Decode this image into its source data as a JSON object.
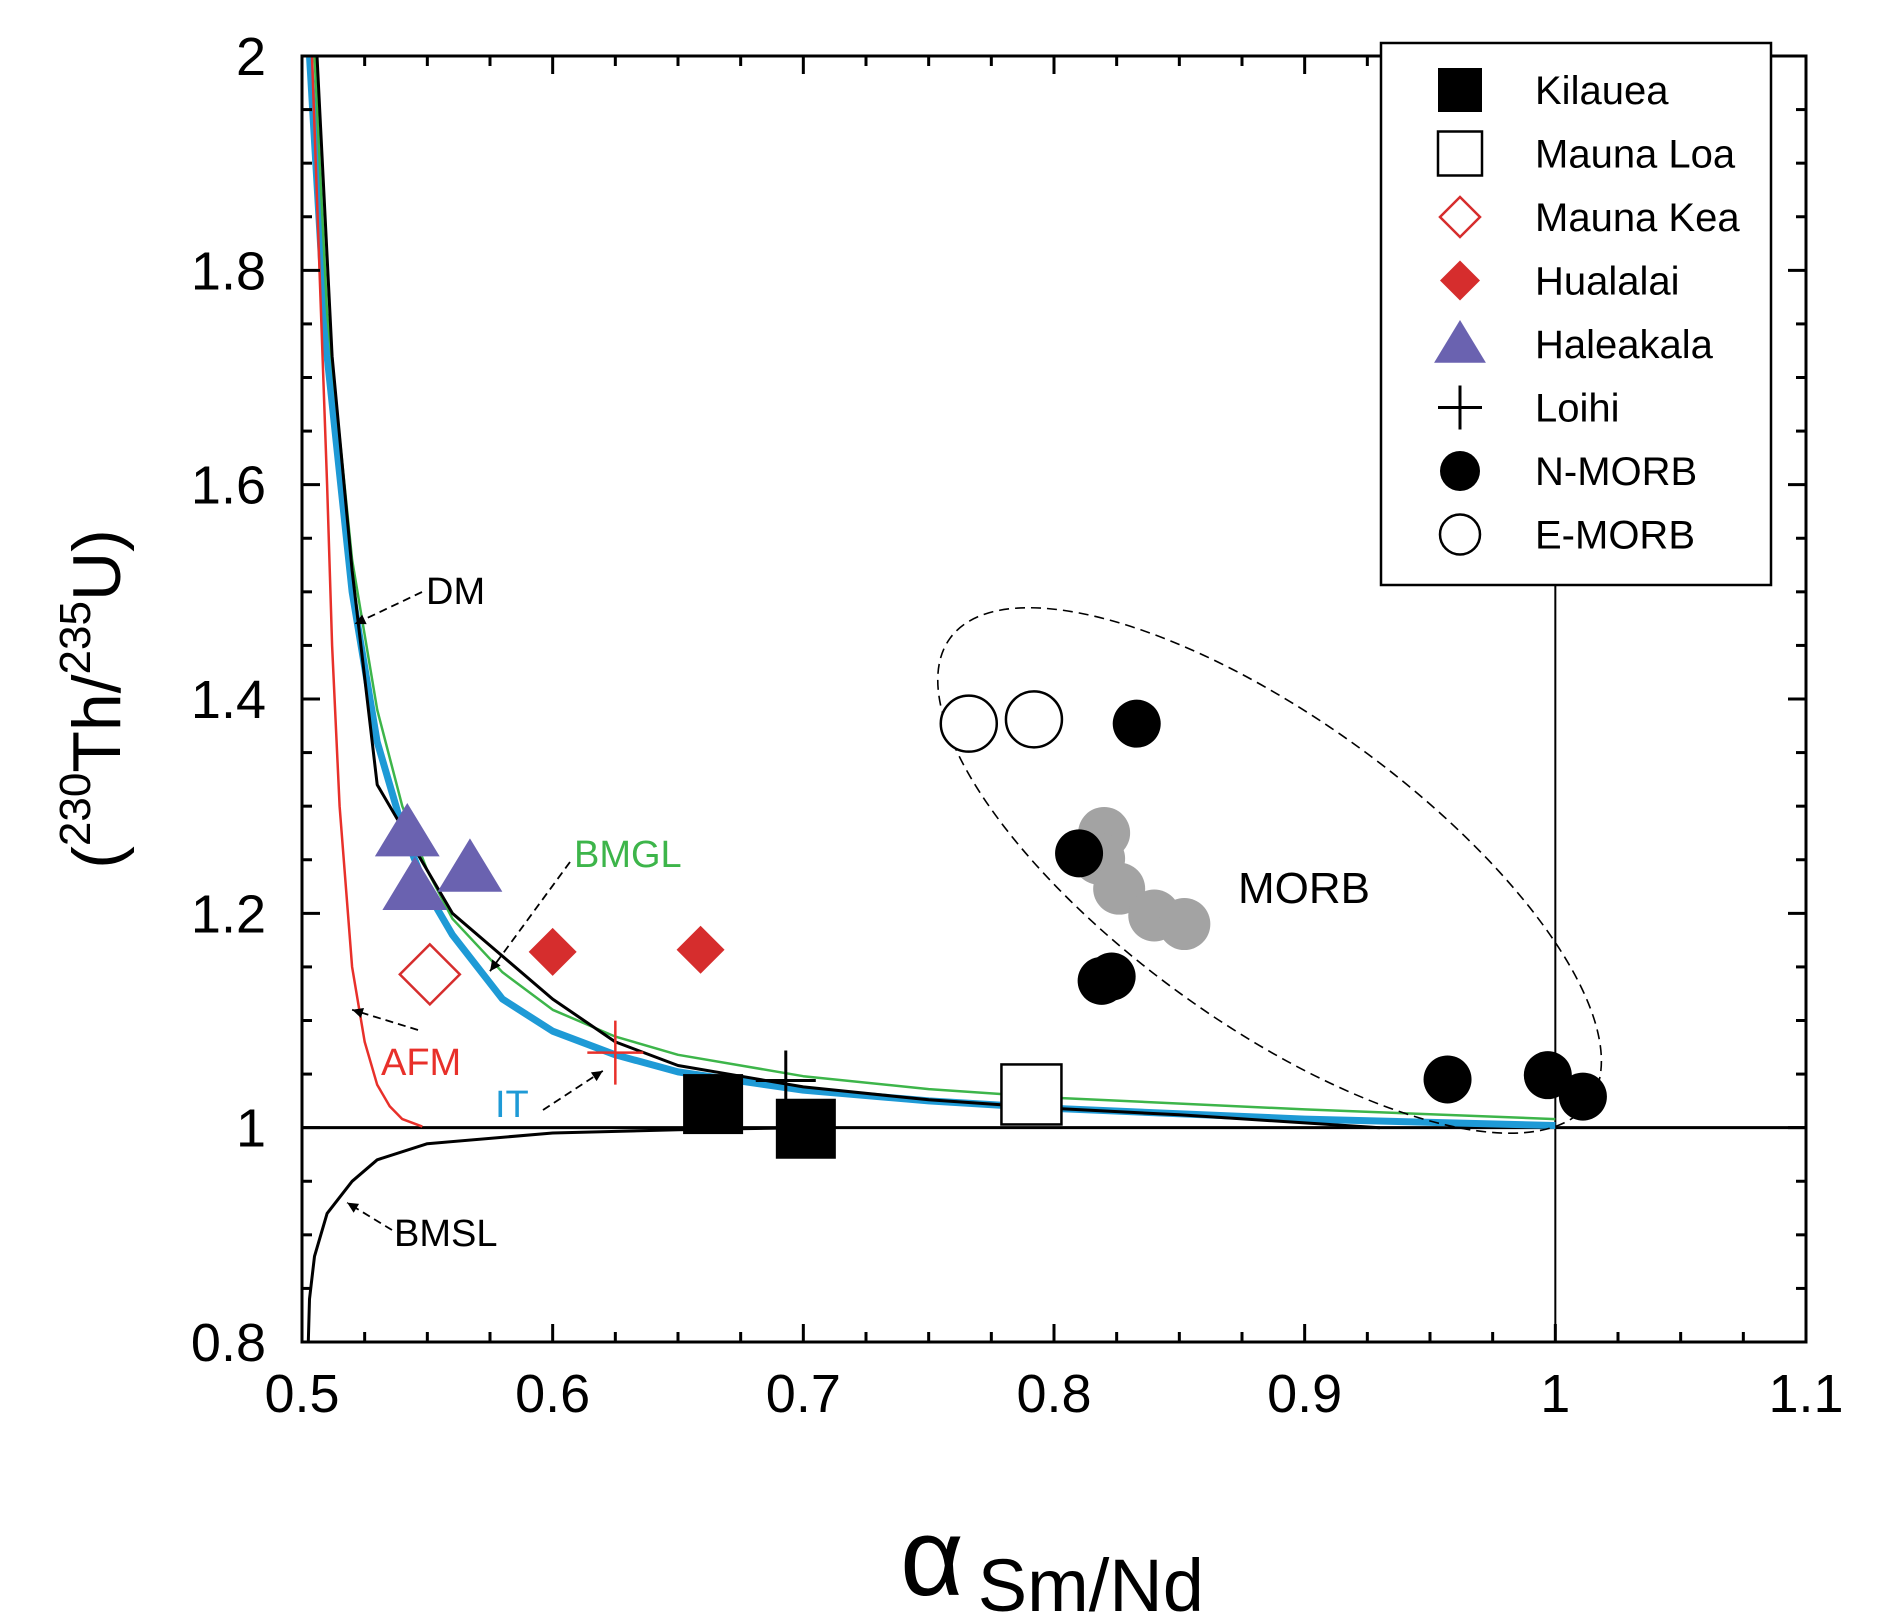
{
  "chart_data": {
    "type": "scatter",
    "title": "",
    "xlabel": {
      "symbol": "α",
      "subscript": "Sm/Nd"
    },
    "ylabel": {
      "open": "(",
      "sup1": "230",
      "mid": "Th/",
      "sup2": "235",
      "end": "U)"
    },
    "xlim": [
      0.5,
      1.1
    ],
    "ylim": [
      0.8,
      2.0
    ],
    "x_ticks": [
      0.5,
      0.6,
      0.7,
      0.8,
      0.9,
      1,
      1.1
    ],
    "x_tick_labels": [
      "0.5",
      "0.6",
      "0.7",
      "0.8",
      "0.9",
      "1",
      "1.1"
    ],
    "y_ticks": [
      0.8,
      1.0,
      1.2,
      1.4,
      1.6,
      1.8,
      2.0
    ],
    "y_tick_labels": [
      "0.8",
      "1",
      "1.2",
      "1.4",
      "1.6",
      "1.8",
      "2"
    ],
    "reference_lines": {
      "y": 1.0,
      "x": 1.0
    },
    "legend_position": "top-right",
    "series": [
      {
        "name": "Kilauea",
        "marker": "square-filled",
        "color": "#000000",
        "points": [
          [
            0.664,
            1.022
          ],
          [
            0.701,
            0.999
          ]
        ]
      },
      {
        "name": "Mauna Loa",
        "marker": "square-open",
        "color": "#000000",
        "points": [
          [
            0.791,
            1.031
          ]
        ]
      },
      {
        "name": "Mauna Kea",
        "marker": "diamond-open",
        "color": "#d62d2d",
        "points": [
          [
            0.551,
            1.143
          ]
        ]
      },
      {
        "name": "Hualalai",
        "marker": "diamond-filled",
        "color": "#d62d2d",
        "points": [
          [
            0.6,
            1.164
          ],
          [
            0.659,
            1.166
          ]
        ]
      },
      {
        "name": "Haleakala",
        "marker": "triangle-filled",
        "color": "#6a62b0",
        "points": [
          [
            0.542,
            1.275
          ],
          [
            0.567,
            1.242
          ],
          [
            0.545,
            1.225
          ]
        ]
      },
      {
        "name": "Loihi",
        "marker": "plus",
        "color": "#000000",
        "points": [
          [
            0.693,
            1.044
          ]
        ]
      },
      {
        "name": "N-MORB",
        "marker": "circle-filled",
        "color": "#000000",
        "points": [
          [
            0.833,
            1.377
          ],
          [
            0.81,
            1.256
          ],
          [
            0.823,
            1.141
          ],
          [
            0.819,
            1.137
          ],
          [
            0.957,
            1.045
          ],
          [
            0.997,
            1.049
          ],
          [
            1.011,
            1.029
          ]
        ]
      },
      {
        "name": "E-MORB",
        "marker": "circle-open",
        "color": "#000000",
        "points": [
          [
            0.766,
            1.377
          ],
          [
            0.792,
            1.381
          ]
        ]
      },
      {
        "name": "MORB (grey)",
        "marker": "circle-grey",
        "color": "#a3a3a3",
        "in_legend": false,
        "points": [
          [
            0.82,
            1.275
          ],
          [
            0.818,
            1.251
          ],
          [
            0.826,
            1.223
          ],
          [
            0.84,
            1.198
          ],
          [
            0.852,
            1.19
          ]
        ]
      }
    ],
    "curves": [
      {
        "name": "IT",
        "color": "#1e9ad6",
        "x": [
          0.503,
          0.51,
          0.52,
          0.53,
          0.54,
          0.55,
          0.56,
          0.58,
          0.6,
          0.625,
          0.65,
          0.7,
          0.75,
          0.8,
          0.9,
          1.0
        ],
        "y": [
          2.0,
          1.72,
          1.5,
          1.36,
          1.28,
          1.22,
          1.18,
          1.12,
          1.09,
          1.068,
          1.052,
          1.035,
          1.025,
          1.018,
          1.008,
          1.002
        ]
      },
      {
        "name": "DM",
        "color": "#000000",
        "x": [
          0.506,
          0.512,
          0.52,
          0.53,
          0.54,
          0.56,
          0.575,
          0.6,
          0.625,
          0.65,
          0.7,
          0.75,
          0.8,
          0.85,
          0.93
        ],
        "y": [
          2.0,
          1.72,
          1.52,
          1.32,
          1.28,
          1.2,
          1.17,
          1.12,
          1.08,
          1.058,
          1.038,
          1.026,
          1.018,
          1.012,
          1.0
        ]
      },
      {
        "name": "BMGL",
        "color": "#3db54a",
        "x": [
          0.505,
          0.51,
          0.52,
          0.53,
          0.54,
          0.55,
          0.56,
          0.58,
          0.6,
          0.625,
          0.65,
          0.7,
          0.75,
          0.8,
          0.9,
          1.0
        ],
        "y": [
          2.0,
          1.76,
          1.53,
          1.39,
          1.3,
          1.24,
          1.195,
          1.145,
          1.11,
          1.085,
          1.068,
          1.048,
          1.036,
          1.028,
          1.017,
          1.008
        ]
      },
      {
        "name": "AFM",
        "color": "#e8302a",
        "x": [
          0.504,
          0.507,
          0.51,
          0.512,
          0.515,
          0.52,
          0.525,
          0.53,
          0.535,
          0.54,
          0.548
        ],
        "y": [
          2.0,
          1.8,
          1.6,
          1.45,
          1.3,
          1.15,
          1.08,
          1.04,
          1.02,
          1.008,
          1.001
        ]
      },
      {
        "name": "BMSL",
        "color": "#000000",
        "x": [
          0.5025,
          0.503,
          0.505,
          0.51,
          0.52,
          0.53,
          0.55,
          0.6,
          0.65,
          0.7
        ],
        "y": [
          0.8,
          0.84,
          0.88,
          0.92,
          0.95,
          0.97,
          0.985,
          0.995,
          0.998,
          1.0
        ]
      }
    ],
    "annotations": [
      {
        "text": "DM",
        "color": "#000000"
      },
      {
        "text": "BMGL",
        "color": "#3db54a"
      },
      {
        "text": "AFM",
        "color": "#e8302a"
      },
      {
        "text": "IT",
        "color": "#1e9ad6"
      },
      {
        "text": "BMSL",
        "color": "#000000"
      },
      {
        "text": "MORB",
        "color": "#000000"
      }
    ]
  }
}
